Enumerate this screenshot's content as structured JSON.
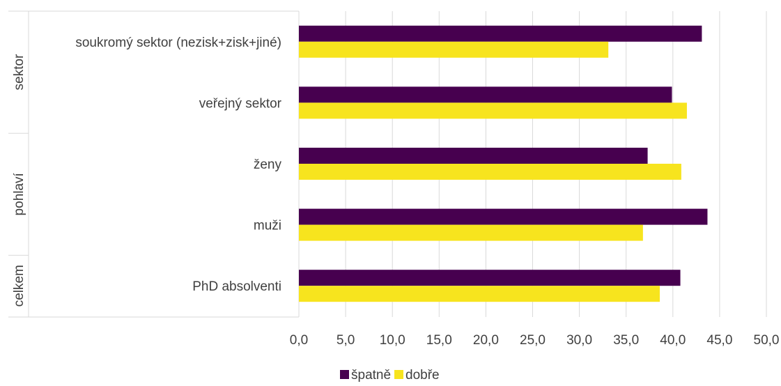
{
  "chart_data": {
    "type": "bar",
    "orientation": "horizontal",
    "groups": [
      {
        "label": "sektor",
        "categories": [
          "soukromý sektor (nezisk+zisk+jiné)",
          "veřejný sektor"
        ]
      },
      {
        "label": "pohlaví",
        "categories": [
          "ženy",
          "muži"
        ]
      },
      {
        "label": "celkem",
        "categories": [
          "PhD absolventi"
        ]
      }
    ],
    "categories": [
      "soukromý sektor (nezisk+zisk+jiné)",
      "veřejný sektor",
      "ženy",
      "muži",
      "PhD absolventi"
    ],
    "series": [
      {
        "name": "špatně",
        "color": "#47004F",
        "values": [
          43.1,
          39.9,
          37.3,
          43.7,
          40.8
        ]
      },
      {
        "name": "dobře",
        "color": "#F7E41E",
        "values": [
          33.1,
          41.5,
          40.9,
          36.8,
          38.6
        ]
      }
    ],
    "xlim": [
      0,
      50
    ],
    "xticks": [
      "0,0",
      "5,0",
      "10,0",
      "15,0",
      "20,0",
      "25,0",
      "30,0",
      "35,0",
      "40,0",
      "45,0",
      "50,0"
    ],
    "grid": true,
    "legend_position": "bottom",
    "title": "",
    "xlabel": "",
    "ylabel": ""
  }
}
